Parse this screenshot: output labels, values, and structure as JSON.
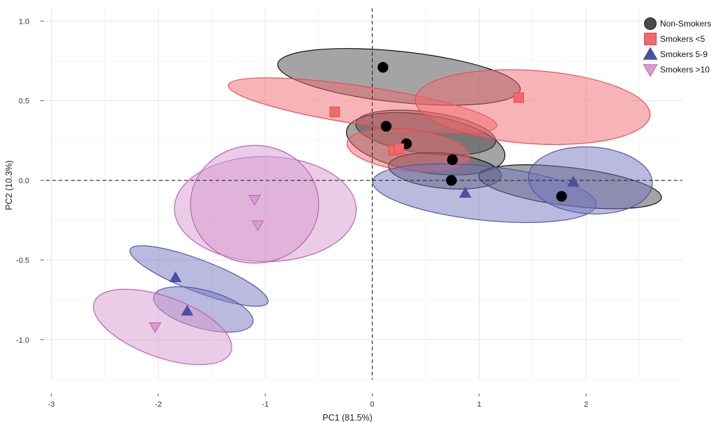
{
  "chart_data": {
    "type": "scatter",
    "title": "",
    "xlabel": "PC1 (81.5%)",
    "ylabel": "PC2 (10.3%)",
    "xlim": [
      -3.05,
      2.9
    ],
    "ylim": [
      -1.25,
      1.08
    ],
    "xticks": [
      -3,
      -2,
      -1,
      0,
      1,
      2
    ],
    "xtick_labels": [
      "-3",
      "-2",
      "-1",
      "0",
      "1",
      "2"
    ],
    "yticks": [
      -1.0,
      -0.5,
      0.0,
      0.5,
      1.0
    ],
    "ytick_labels": [
      "-1.0",
      "-0.5",
      "0.0",
      "0.5",
      "1.0"
    ],
    "grid": true,
    "reference_lines": {
      "x": 0,
      "y": 0,
      "style": "dashed"
    },
    "legend_position": "top-right",
    "series": [
      {
        "name": "Non-Smokers",
        "marker": "circle",
        "color": "#000000",
        "fill": "#4a4a4a",
        "points": [
          [
            0.1,
            0.71
          ],
          [
            0.13,
            0.34
          ],
          [
            0.32,
            0.23
          ],
          [
            0.75,
            0.13
          ],
          [
            0.74,
            0.0
          ],
          [
            1.77,
            -0.1
          ]
        ],
        "ellipses": [
          {
            "center": [
              0.25,
              0.65
            ],
            "radii": [
              1.14,
              0.16
            ],
            "angle": 6.0
          },
          {
            "center": [
              0.5,
              0.3
            ],
            "radii": [
              0.66,
              0.13
            ],
            "angle": 7.5
          },
          {
            "center": [
              0.5,
              0.23
            ],
            "radii": [
              0.75,
              0.18
            ],
            "angle": 9.5
          },
          {
            "center": [
              0.68,
              0.06
            ],
            "radii": [
              0.53,
              0.11
            ],
            "angle": 5.2
          },
          {
            "center": [
              1.85,
              -0.04
            ],
            "radii": [
              0.86,
              0.12
            ],
            "angle": 6.9
          }
        ]
      },
      {
        "name": "Smokers <5",
        "marker": "square",
        "color": "#e8474b",
        "fill": "#f06a6d",
        "points": [
          [
            -0.35,
            0.43
          ],
          [
            1.37,
            0.52
          ],
          [
            0.2,
            0.19
          ],
          [
            0.25,
            0.2
          ]
        ],
        "ellipses": [
          {
            "center": [
              -0.09,
              0.47
            ],
            "radii": [
              1.27,
              0.12
            ],
            "angle": 8.6
          },
          {
            "center": [
              1.5,
              0.46
            ],
            "radii": [
              1.1,
              0.23
            ],
            "angle": 3.9
          },
          {
            "center": [
              0.34,
              0.19
            ],
            "radii": [
              0.58,
              0.13
            ],
            "angle": 6.7
          }
        ]
      },
      {
        "name": "Smokers 5-9",
        "marker": "triangle-up",
        "color": "#4a4fa4",
        "fill": "#7475be",
        "points": [
          [
            -1.84,
            -0.61
          ],
          [
            -1.73,
            -0.82
          ],
          [
            0.87,
            -0.08
          ],
          [
            1.88,
            -0.01
          ]
        ],
        "ellipses": [
          {
            "center": [
              -1.62,
              -0.6
            ],
            "radii": [
              0.69,
              0.1
            ],
            "angle": 21.0
          },
          {
            "center": [
              -1.58,
              -0.81
            ],
            "radii": [
              0.48,
              0.12
            ],
            "angle": 15.0
          },
          {
            "center": [
              1.05,
              -0.08
            ],
            "radii": [
              1.05,
              0.17
            ],
            "angle": 6.0
          },
          {
            "center": [
              2.04,
              0.0
            ],
            "radii": [
              0.58,
              0.21
            ],
            "angle": 3.5
          }
        ]
      },
      {
        "name": "Smokers >10",
        "marker": "triangle-down",
        "color": "#b05ab0",
        "fill": "#d89ad0",
        "points": [
          [
            -1.1,
            -0.12
          ],
          [
            -1.07,
            -0.28
          ],
          [
            -2.03,
            -0.92
          ]
        ],
        "ellipses": [
          {
            "center": [
              -1.0,
              -0.18
            ],
            "radii": [
              0.85,
              0.33
            ],
            "angle": 0.5
          },
          {
            "center": [
              -1.1,
              -0.15
            ],
            "radii": [
              0.6,
              0.37
            ],
            "angle": 0.0
          },
          {
            "center": [
              -1.96,
              -0.92
            ],
            "radii": [
              0.68,
              0.19
            ],
            "angle": 20.0
          }
        ]
      }
    ]
  }
}
